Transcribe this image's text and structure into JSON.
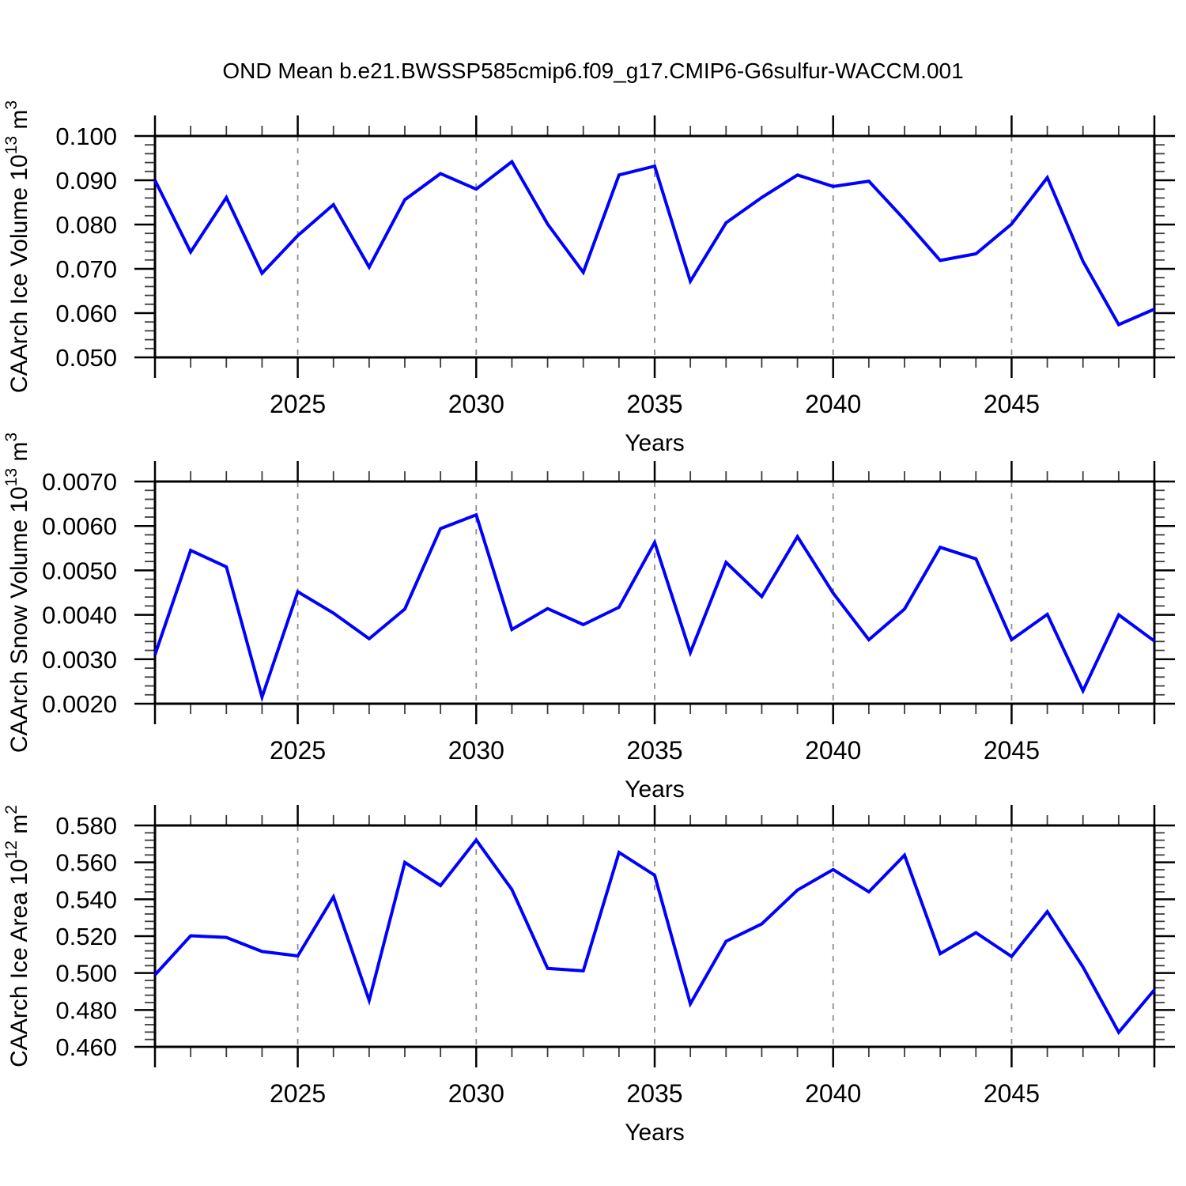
{
  "title": "OND Mean b.e21.BWSSP585cmip6.f09_g17.CMIP6-G6sulfur-WACCM.001",
  "colors": {
    "series_line": "#0000ff",
    "gridline": "#8c8c8c",
    "frame": "#000000",
    "minor_tick": "#3c3c3c",
    "text": "#000000",
    "background": "#ffffff"
  },
  "chart_data": [
    {
      "type": "line",
      "id": "ice-volume",
      "xlabel": "Years",
      "ylabel_parts": [
        [
          "CAArch Ice Volume 10",
          0
        ],
        [
          "13",
          1
        ],
        [
          " m",
          0
        ],
        [
          "3",
          1
        ]
      ],
      "x": [
        2021,
        2022,
        2023,
        2024,
        2025,
        2026,
        2027,
        2028,
        2029,
        2030,
        2031,
        2032,
        2033,
        2034,
        2035,
        2036,
        2037,
        2038,
        2039,
        2040,
        2041,
        2042,
        2043,
        2044,
        2045,
        2046,
        2047,
        2048,
        2049
      ],
      "values": [
        0.09,
        0.0738,
        0.0861,
        0.069,
        0.0775,
        0.0845,
        0.0704,
        0.0856,
        0.0915,
        0.088,
        0.0942,
        0.0801,
        0.0692,
        0.0912,
        0.0932,
        0.0672,
        0.0804,
        0.0861,
        0.0912,
        0.0886,
        0.0898,
        0.0811,
        0.0719,
        0.0734,
        0.0801,
        0.0906,
        0.0717,
        0.0574,
        0.0609
      ],
      "xlim": [
        2021,
        2049
      ],
      "ylim": [
        0.05,
        0.1
      ],
      "ytick_labels": [
        "0.050",
        "0.060",
        "0.070",
        "0.080",
        "0.090",
        "0.100"
      ],
      "ytick_minor": 0.002,
      "xtick_labels": [
        "2025",
        "2030",
        "2035",
        "2040",
        "2045"
      ],
      "xticks_labeled": [
        2025,
        2030,
        2035,
        2040,
        2045
      ],
      "grid_x_dashed": true,
      "legend": "none"
    },
    {
      "type": "line",
      "id": "snow-volume",
      "xlabel": "Years",
      "ylabel_parts": [
        [
          "CAArch Snow Volume 10",
          0
        ],
        [
          "13",
          1
        ],
        [
          " m",
          0
        ],
        [
          "3",
          1
        ]
      ],
      "x": [
        2021,
        2022,
        2023,
        2024,
        2025,
        2026,
        2027,
        2028,
        2029,
        2030,
        2031,
        2032,
        2033,
        2034,
        2035,
        2036,
        2037,
        2038,
        2039,
        2040,
        2041,
        2042,
        2043,
        2044,
        2045,
        2046,
        2047,
        2048,
        2049
      ],
      "values": [
        0.0031,
        0.00545,
        0.00508,
        0.00215,
        0.00452,
        0.00404,
        0.00346,
        0.00413,
        0.00594,
        0.00625,
        0.00367,
        0.00414,
        0.00378,
        0.00417,
        0.00563,
        0.00315,
        0.00518,
        0.00441,
        0.00576,
        0.00449,
        0.00344,
        0.00413,
        0.00552,
        0.00526,
        0.00344,
        0.00401,
        0.00229,
        0.004,
        0.00341
      ],
      "xlim": [
        2021,
        2049
      ],
      "ylim": [
        0.002,
        0.007
      ],
      "ytick_labels": [
        "0.0020",
        "0.0030",
        "0.0040",
        "0.0050",
        "0.0060",
        "0.0070"
      ],
      "ytick_minor": 0.0002,
      "xtick_labels": [
        "2025",
        "2030",
        "2035",
        "2040",
        "2045"
      ],
      "xticks_labeled": [
        2025,
        2030,
        2035,
        2040,
        2045
      ],
      "grid_x_dashed": true,
      "legend": "none"
    },
    {
      "type": "line",
      "id": "ice-area",
      "xlabel": "Years",
      "ylabel_parts": [
        [
          "CAArch Ice Area 10",
          0
        ],
        [
          "12",
          1
        ],
        [
          " m",
          0
        ],
        [
          "2",
          1
        ]
      ],
      "x": [
        2021,
        2022,
        2023,
        2024,
        2025,
        2026,
        2027,
        2028,
        2029,
        2030,
        2031,
        2032,
        2033,
        2034,
        2035,
        2036,
        2037,
        2038,
        2039,
        2040,
        2041,
        2042,
        2043,
        2044,
        2045,
        2046,
        2047,
        2048,
        2049
      ],
      "values": [
        0.499,
        0.5202,
        0.5193,
        0.5117,
        0.5093,
        0.5413,
        0.4852,
        0.56,
        0.5474,
        0.5721,
        0.5453,
        0.5025,
        0.5012,
        0.5654,
        0.553,
        0.4833,
        0.5172,
        0.5266,
        0.545,
        0.5561,
        0.544,
        0.5639,
        0.5105,
        0.5219,
        0.509,
        0.5333,
        0.5033,
        0.4679,
        0.4909
      ],
      "xlim": [
        2021,
        2049
      ],
      "ylim": [
        0.46,
        0.58
      ],
      "ytick_labels": [
        "0.460",
        "0.480",
        "0.500",
        "0.520",
        "0.540",
        "0.560",
        "0.580"
      ],
      "ytick_minor": 0.004,
      "xtick_labels": [
        "2025",
        "2030",
        "2035",
        "2040",
        "2045"
      ],
      "xticks_labeled": [
        2025,
        2030,
        2035,
        2040,
        2045
      ],
      "grid_x_dashed": true,
      "legend": "none"
    }
  ]
}
